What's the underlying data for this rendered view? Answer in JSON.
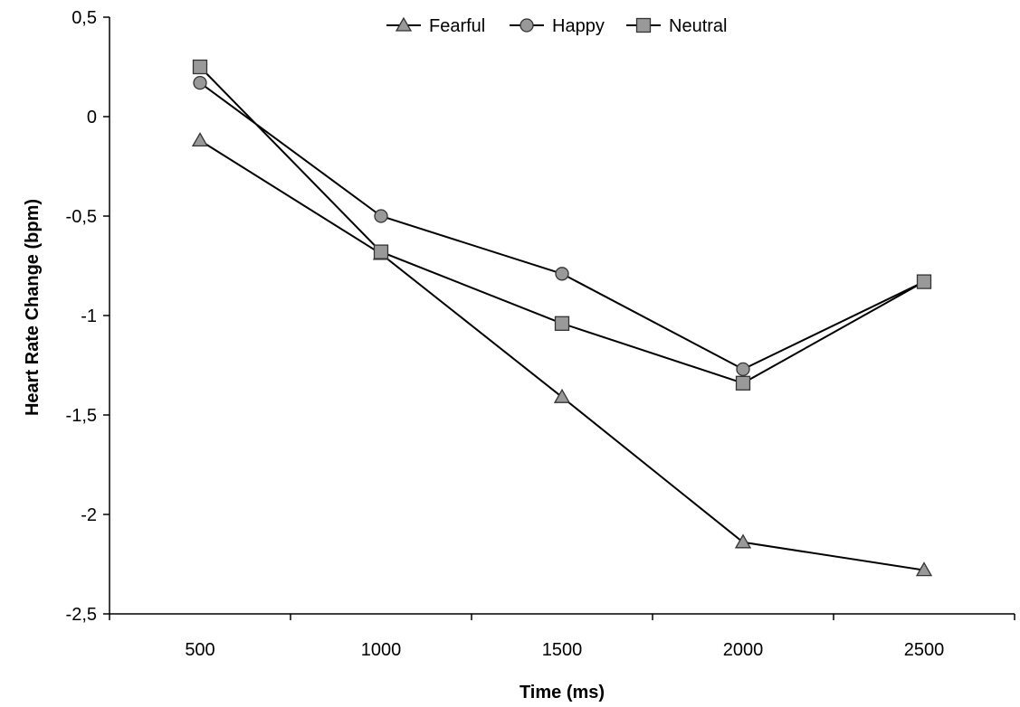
{
  "chart_data": {
    "type": "line",
    "title": "",
    "xlabel": "Time (ms)",
    "ylabel": "Heart Rate Change (bpm)",
    "x": [
      500,
      1000,
      1500,
      2000,
      2500
    ],
    "x_tick_labels": [
      "500",
      "1000",
      "1500",
      "2000",
      "2500"
    ],
    "ylim": [
      -2.5,
      0.5
    ],
    "y_ticks": [
      0.5,
      0,
      -0.5,
      -1,
      -1.5,
      -2,
      -2.5
    ],
    "y_tick_labels": [
      "0,5",
      "0",
      "-0,5",
      "-1",
      "-1,5",
      "-2",
      "-2,5"
    ],
    "grid": false,
    "legend_position": "top-center",
    "series": [
      {
        "name": "Fearful",
        "marker": "triangle",
        "values": [
          -0.12,
          -0.69,
          -1.41,
          -2.14,
          -2.28
        ]
      },
      {
        "name": "Happy",
        "marker": "circle",
        "values": [
          0.17,
          -0.5,
          -0.79,
          -1.27,
          -0.83
        ]
      },
      {
        "name": "Neutral",
        "marker": "square",
        "values": [
          0.25,
          -0.68,
          -1.04,
          -1.34,
          -0.83
        ]
      }
    ],
    "colors": {
      "line": "#000000",
      "marker_fill": "#999999",
      "marker_stroke": "#333333"
    }
  }
}
